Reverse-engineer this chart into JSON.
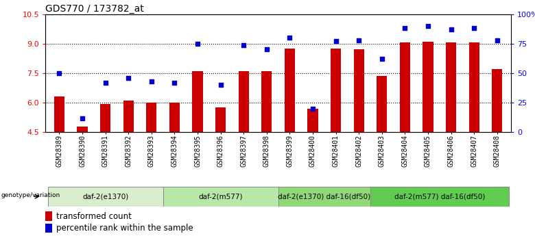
{
  "title": "GDS770 / 173782_at",
  "samples": [
    "GSM28389",
    "GSM28390",
    "GSM28391",
    "GSM28392",
    "GSM28393",
    "GSM28394",
    "GSM28395",
    "GSM28396",
    "GSM28397",
    "GSM28398",
    "GSM28399",
    "GSM28400",
    "GSM28401",
    "GSM28402",
    "GSM28403",
    "GSM28404",
    "GSM28405",
    "GSM28406",
    "GSM28407",
    "GSM28408"
  ],
  "bar_values": [
    6.3,
    4.8,
    5.95,
    6.1,
    6.0,
    6.0,
    7.6,
    5.75,
    7.6,
    7.6,
    8.75,
    5.7,
    8.75,
    8.7,
    7.35,
    9.05,
    9.1,
    9.05,
    9.05,
    7.7
  ],
  "dot_values_pct": [
    50,
    12,
    42,
    46,
    43,
    42,
    75,
    40,
    74,
    70,
    80,
    20,
    77,
    78,
    62,
    88,
    90,
    87,
    88,
    78
  ],
  "bar_color": "#cc0000",
  "dot_color": "#0000cc",
  "ylim_left": [
    4.5,
    10.5
  ],
  "ylim_right": [
    0,
    100
  ],
  "yticks_left": [
    4.5,
    6.0,
    7.5,
    9.0,
    10.5
  ],
  "yticks_right": [
    0,
    25,
    50,
    75,
    100
  ],
  "ytick_labels_right": [
    "0",
    "25",
    "50",
    "75",
    "100%"
  ],
  "groups": [
    {
      "label": "daf-2(e1370)",
      "start": 0,
      "end": 4,
      "color": "#d8eecc"
    },
    {
      "label": "daf-2(m577)",
      "start": 5,
      "end": 9,
      "color": "#b8e8a8"
    },
    {
      "label": "daf-2(e1370) daf-16(df50)",
      "start": 10,
      "end": 13,
      "color": "#90d878"
    },
    {
      "label": "daf-2(m577) daf-16(df50)",
      "start": 14,
      "end": 19,
      "color": "#60cc50"
    }
  ],
  "genotype_label": "genotype/variation",
  "legend_bar_label": "transformed count",
  "legend_dot_label": "percentile rank within the sample",
  "grid_values": [
    6.0,
    7.5,
    9.0
  ],
  "title_fontsize": 10,
  "tick_label_fontsize": 7
}
